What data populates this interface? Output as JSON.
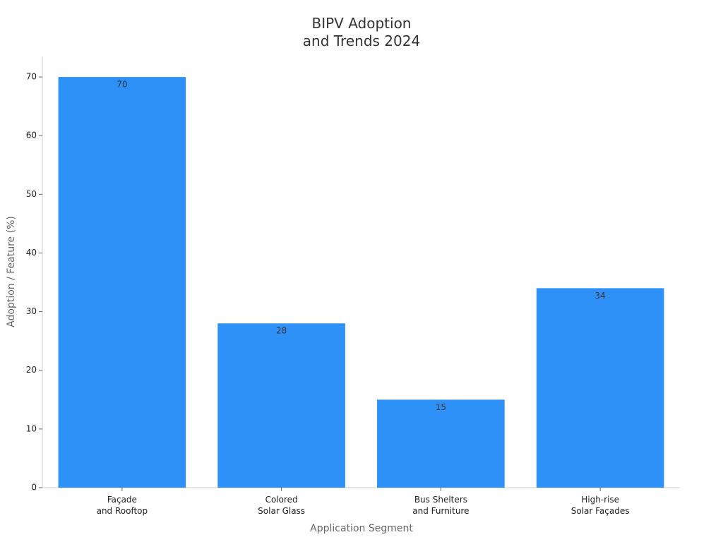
{
  "chart_data": {
    "type": "bar",
    "title": "BIPV Adoption\nand Trends 2024",
    "x_label": "Application Segment",
    "y_label": "Adoption / Feature (%)",
    "categories": [
      "Façade\nand Rooftop",
      "Colored\nSolar Glass",
      "Bus Shelters\nand Furniture",
      "High-rise\nSolar Façades"
    ],
    "values": [
      70,
      28,
      15,
      34
    ],
    "color": "#2e91f8",
    "ylim": [
      0,
      73.5
    ],
    "yticks": [
      0,
      10,
      20,
      30,
      40,
      50,
      60,
      70
    ],
    "grid": false
  }
}
